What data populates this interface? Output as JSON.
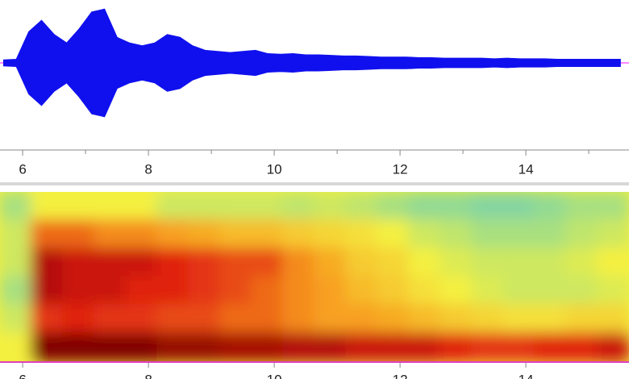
{
  "chart_data": [
    {
      "type": "area",
      "x": [
        5.7,
        5.9,
        6.1,
        6.3,
        6.5,
        6.7,
        6.9,
        7.1,
        7.3,
        7.5,
        7.7,
        7.9,
        8.1,
        8.3,
        8.5,
        8.7,
        8.9,
        9.1,
        9.3,
        9.5,
        9.7,
        9.9,
        10.1,
        10.3,
        10.5,
        10.7,
        10.9,
        11.1,
        11.3,
        11.5,
        11.7,
        11.9,
        12.1,
        12.3,
        12.5,
        12.7,
        12.9,
        13.1,
        13.3,
        13.5,
        13.7,
        13.9,
        14.1,
        14.3,
        14.5,
        14.7,
        14.9,
        15.1,
        15.3,
        15.5
      ],
      "values": [
        0.05,
        0.06,
        0.55,
        0.75,
        0.5,
        0.35,
        0.6,
        0.9,
        0.95,
        0.45,
        0.35,
        0.3,
        0.35,
        0.5,
        0.45,
        0.3,
        0.22,
        0.2,
        0.18,
        0.2,
        0.22,
        0.16,
        0.15,
        0.16,
        0.14,
        0.14,
        0.13,
        0.12,
        0.12,
        0.11,
        0.1,
        0.1,
        0.1,
        0.09,
        0.09,
        0.08,
        0.08,
        0.08,
        0.08,
        0.07,
        0.08,
        0.07,
        0.07,
        0.07,
        0.06,
        0.06,
        0.06,
        0.06,
        0.06,
        0.06
      ],
      "color": "#1010ee",
      "xlim": [
        5.64,
        15.64
      ],
      "ylim": [
        -1,
        1
      ],
      "xticks": [
        6,
        8,
        10,
        12,
        14
      ],
      "minor_xticks": [
        7,
        9,
        11,
        13,
        15
      ]
    },
    {
      "type": "heatmap",
      "xlim": [
        5.64,
        15.64
      ],
      "values": [
        [
          0.45,
          0.55,
          0.55,
          0.55,
          0.55,
          0.5,
          0.5,
          0.5,
          0.5,
          0.48,
          0.5,
          0.48,
          0.45,
          0.42,
          0.42,
          0.4,
          0.4,
          0.42,
          0.45,
          0.45
        ],
        [
          0.5,
          0.75,
          0.75,
          0.72,
          0.72,
          0.7,
          0.68,
          0.65,
          0.65,
          0.62,
          0.6,
          0.58,
          0.55,
          0.5,
          0.48,
          0.45,
          0.45,
          0.45,
          0.48,
          0.5
        ],
        [
          0.5,
          0.88,
          0.85,
          0.85,
          0.85,
          0.82,
          0.8,
          0.78,
          0.78,
          0.72,
          0.68,
          0.62,
          0.6,
          0.55,
          0.52,
          0.5,
          0.5,
          0.5,
          0.52,
          0.55
        ],
        [
          0.45,
          0.88,
          0.85,
          0.85,
          0.82,
          0.82,
          0.8,
          0.78,
          0.75,
          0.72,
          0.7,
          0.65,
          0.62,
          0.58,
          0.55,
          0.52,
          0.5,
          0.5,
          0.5,
          0.52
        ],
        [
          0.5,
          0.8,
          0.82,
          0.8,
          0.8,
          0.78,
          0.78,
          0.75,
          0.75,
          0.72,
          0.7,
          0.7,
          0.68,
          0.65,
          0.62,
          0.6,
          0.58,
          0.58,
          0.6,
          0.6
        ],
        [
          0.55,
          0.95,
          0.95,
          0.95,
          0.95,
          0.92,
          0.92,
          0.9,
          0.9,
          0.88,
          0.88,
          0.85,
          0.85,
          0.85,
          0.82,
          0.8,
          0.8,
          0.82,
          0.82,
          0.85
        ]
      ],
      "colorscale": [
        [
          0.3,
          "#40c0e0"
        ],
        [
          0.45,
          "#a8e080"
        ],
        [
          0.55,
          "#f4f040"
        ],
        [
          0.7,
          "#f8a020"
        ],
        [
          0.82,
          "#e02010"
        ],
        [
          0.95,
          "#800000"
        ]
      ],
      "xticks": [
        6,
        8,
        10,
        12,
        14
      ]
    }
  ]
}
